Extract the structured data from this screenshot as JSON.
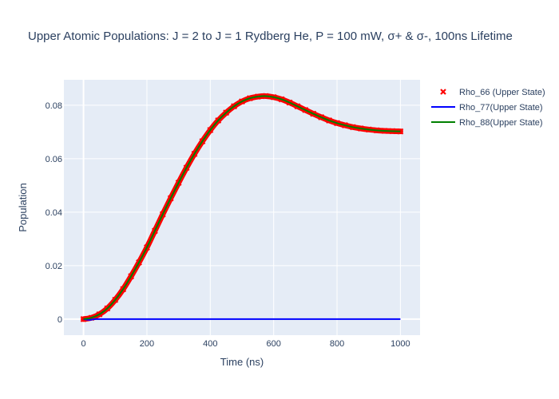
{
  "chart_data": {
    "type": "line",
    "title": "Upper Atomic Populations: J = 2 to J = 1 Rydberg He, P = 100 mW, σ+ & σ-, 100ns Lifetime",
    "xlabel": "Time (ns)",
    "ylabel": "Population",
    "xlim": [
      -62,
      1062
    ],
    "ylim": [
      -0.006,
      0.0895
    ],
    "x_ticks": [
      0,
      200,
      400,
      600,
      800,
      1000
    ],
    "x_tick_labels": [
      "0",
      "200",
      "400",
      "600",
      "800",
      "1000"
    ],
    "y_ticks": [
      0,
      0.02,
      0.04,
      0.06,
      0.08
    ],
    "y_tick_labels": [
      "0",
      "0.02",
      "0.04",
      "0.06",
      "0.08"
    ],
    "grid": true,
    "legend_position": "top-right",
    "series": [
      {
        "name": "Rho_66 (Upper State)",
        "mode": "markers",
        "marker": "x",
        "color": "#ff0000",
        "x": [
          0,
          25,
          50,
          75,
          100,
          125,
          150,
          175,
          200,
          225,
          250,
          275,
          300,
          325,
          350,
          375,
          400,
          425,
          450,
          475,
          500,
          525,
          550,
          575,
          600,
          625,
          650,
          675,
          700,
          725,
          750,
          775,
          800,
          825,
          850,
          875,
          900,
          925,
          950,
          975,
          1000
        ],
        "y": [
          0.0,
          0.0005,
          0.0018,
          0.004,
          0.0072,
          0.0112,
          0.016,
          0.0212,
          0.0268,
          0.033,
          0.0392,
          0.0452,
          0.051,
          0.0566,
          0.0618,
          0.0665,
          0.0707,
          0.0743,
          0.0772,
          0.0796,
          0.0814,
          0.0826,
          0.0832,
          0.0834,
          0.083,
          0.0822,
          0.081,
          0.0796,
          0.0782,
          0.0768,
          0.0755,
          0.0743,
          0.0733,
          0.0725,
          0.0718,
          0.0713,
          0.0709,
          0.0706,
          0.0704,
          0.0703,
          0.0702
        ]
      },
      {
        "name": "Rho_77(Upper State)",
        "mode": "lines",
        "color": "#0000ff",
        "x": [
          0,
          10,
          20,
          30,
          40,
          60,
          100,
          200,
          300,
          400,
          500,
          600,
          700,
          800,
          900,
          1000
        ],
        "y": [
          0.0,
          -0.0002,
          -0.0003,
          -0.0001,
          0.0,
          0.0,
          0.0,
          0.0,
          0.0,
          0.0,
          0.0,
          0.0,
          0.0,
          0.0,
          0.0,
          0.0
        ]
      },
      {
        "name": "Rho_88(Upper State)",
        "mode": "lines",
        "color": "#008000",
        "x": [
          0,
          25,
          50,
          75,
          100,
          125,
          150,
          175,
          200,
          225,
          250,
          275,
          300,
          325,
          350,
          375,
          400,
          425,
          450,
          475,
          500,
          525,
          550,
          575,
          600,
          625,
          650,
          675,
          700,
          725,
          750,
          775,
          800,
          825,
          850,
          875,
          900,
          925,
          950,
          975,
          1000
        ],
        "y": [
          0.0,
          0.0005,
          0.0018,
          0.004,
          0.0072,
          0.0112,
          0.016,
          0.0212,
          0.0268,
          0.033,
          0.0392,
          0.0452,
          0.051,
          0.0566,
          0.0618,
          0.0665,
          0.0707,
          0.0743,
          0.0772,
          0.0796,
          0.0814,
          0.0826,
          0.0832,
          0.0834,
          0.083,
          0.0822,
          0.081,
          0.0796,
          0.0782,
          0.0768,
          0.0755,
          0.0743,
          0.0733,
          0.0725,
          0.0718,
          0.0713,
          0.0709,
          0.0706,
          0.0704,
          0.0703,
          0.0702
        ]
      }
    ],
    "colors": {
      "plot_bg": "#e5ecf6",
      "grid": "#ffffff",
      "text": "#2a3f5f"
    }
  }
}
